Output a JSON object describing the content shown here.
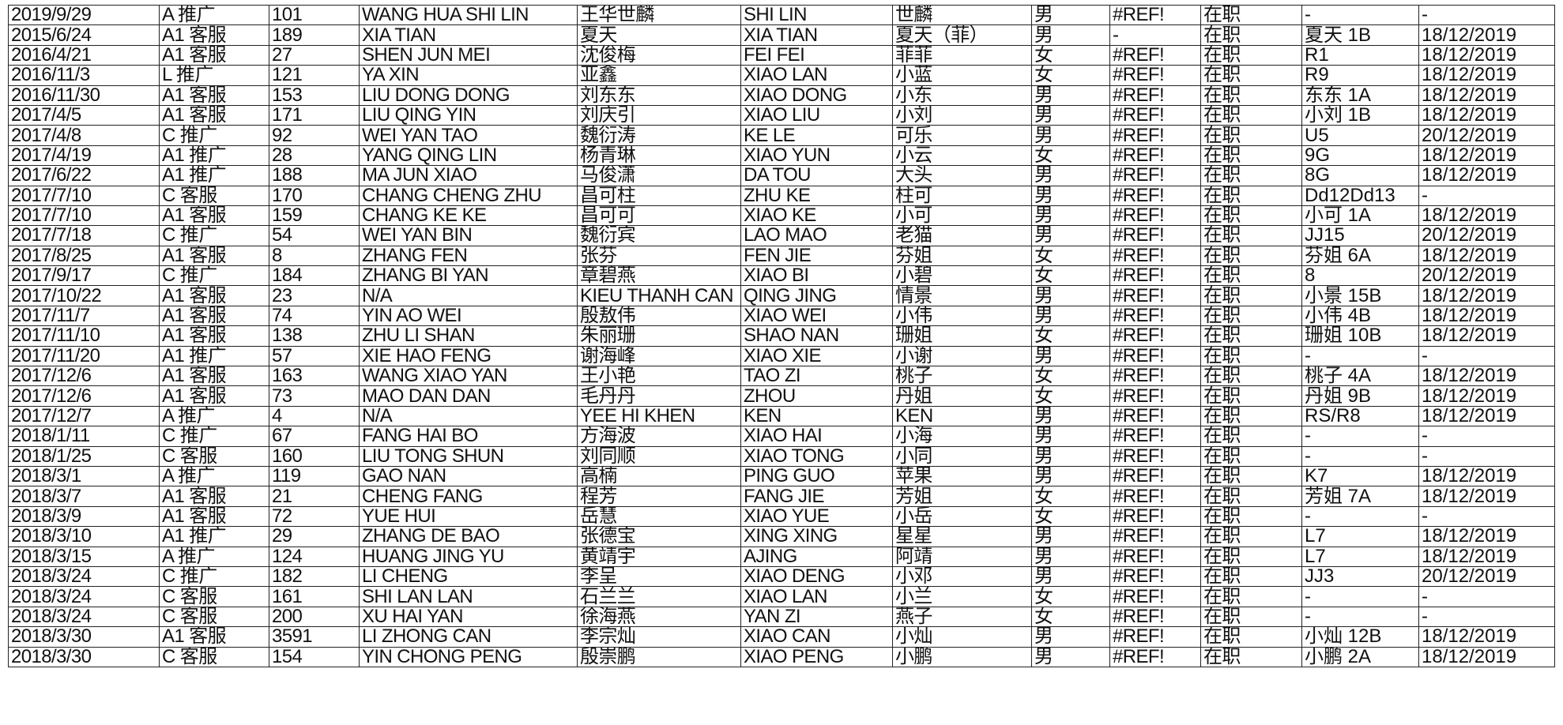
{
  "rows": [
    [
      "2019/9/29",
      "A 推广",
      "101",
      "WANG HUA SHI LIN",
      "王华世麟",
      "SHI LIN",
      "世麟",
      "男",
      "#REF!",
      "在职",
      "-",
      "-"
    ],
    [
      "2015/6/24",
      "A1 客服",
      "189",
      "XIA TIAN",
      "夏天",
      "XIA TIAN",
      "夏天（菲）",
      "男",
      "-",
      "在职",
      "夏天 1B",
      "18/12/2019"
    ],
    [
      "2016/4/21",
      "A1 客服",
      "27",
      "SHEN JUN MEI",
      "沈俊梅",
      "FEI FEI",
      "菲菲",
      "女",
      "#REF!",
      "在职",
      "R1",
      "18/12/2019"
    ],
    [
      "2016/11/3",
      "L 推广",
      "121",
      "YA XIN",
      "亚鑫",
      "XIAO LAN",
      "小蓝",
      "女",
      "#REF!",
      "在职",
      "R9",
      "18/12/2019"
    ],
    [
      "2016/11/30",
      "A1 客服",
      "153",
      "LIU DONG DONG",
      "刘东东",
      "XIAO DONG",
      "小东",
      "男",
      "#REF!",
      "在职",
      "东东 1A",
      "18/12/2019"
    ],
    [
      "2017/4/5",
      "A1 客服",
      "171",
      "LIU QING YIN",
      "刘庆引",
      "XIAO LIU",
      "小刘",
      "男",
      "#REF!",
      "在职",
      "小刘 1B",
      "18/12/2019"
    ],
    [
      "2017/4/8",
      "C 推广",
      "92",
      "WEI YAN TAO",
      "魏衍涛",
      "KE LE",
      "可乐",
      "男",
      "#REF!",
      "在职",
      "U5",
      "20/12/2019"
    ],
    [
      "2017/4/19",
      "A1 推广",
      "28",
      "YANG QING LIN",
      "杨青琳",
      "XIAO YUN",
      "小云",
      "女",
      "#REF!",
      "在职",
      "9G",
      "18/12/2019"
    ],
    [
      "2017/6/22",
      "A1 推广",
      "188",
      "MA JUN XIAO",
      "马俊潇",
      "DA TOU",
      "大头",
      "男",
      "#REF!",
      "在职",
      "8G",
      "18/12/2019"
    ],
    [
      "2017/7/10",
      "C 客服",
      "170",
      "CHANG CHENG ZHU",
      "昌可柱",
      "ZHU KE",
      "柱可",
      "男",
      "#REF!",
      "在职",
      "Dd12Dd13",
      "-"
    ],
    [
      "2017/7/10",
      "A1 客服",
      "159",
      "CHANG KE KE",
      "昌可可",
      "XIAO KE",
      "小可",
      "男",
      "#REF!",
      "在职",
      "小可 1A",
      "18/12/2019"
    ],
    [
      "2017/7/18",
      "C 推广",
      "54",
      "WEI YAN BIN",
      "魏衍宾",
      "LAO MAO",
      "老猫",
      "男",
      "#REF!",
      "在职",
      "JJ15",
      "20/12/2019"
    ],
    [
      "2017/8/25",
      "A1 客服",
      "8",
      "ZHANG FEN",
      "张芬",
      "FEN JIE",
      "芬姐",
      "女",
      "#REF!",
      "在职",
      "芬姐 6A",
      "18/12/2019"
    ],
    [
      "2017/9/17",
      "C 推广",
      "184",
      "ZHANG BI YAN",
      "章碧燕",
      "XIAO BI",
      "小碧",
      "女",
      "#REF!",
      "在职",
      "8",
      "20/12/2019"
    ],
    [
      "2017/10/22",
      "A1 客服",
      "23",
      "N/A",
      "KIEU THANH CAN",
      "QING JING",
      "情景",
      "男",
      "#REF!",
      "在职",
      "小景 15B",
      "18/12/2019"
    ],
    [
      "2017/11/7",
      "A1 客服",
      "74",
      "YIN AO WEI",
      "殷敖伟",
      "XIAO WEI",
      "小伟",
      "男",
      "#REF!",
      "在职",
      "小伟 4B",
      "18/12/2019"
    ],
    [
      "2017/11/10",
      "A1 客服",
      "138",
      "ZHU LI SHAN",
      "朱丽珊",
      "SHAO NAN",
      "珊姐",
      "女",
      "#REF!",
      "在职",
      "珊姐 10B",
      "18/12/2019"
    ],
    [
      "2017/11/20",
      "A1 推广",
      "57",
      "XIE HAO FENG",
      "谢海峰",
      "XIAO XIE",
      "小谢",
      "男",
      "#REF!",
      "在职",
      "-",
      "-"
    ],
    [
      "2017/12/6",
      "A1 客服",
      "163",
      "WANG XIAO YAN",
      "王小艳",
      "TAO ZI",
      "桃子",
      "女",
      "#REF!",
      "在职",
      "桃子 4A",
      "18/12/2019"
    ],
    [
      "2017/12/6",
      "A1 客服",
      "73",
      "MAO DAN DAN",
      "毛丹丹",
      "ZHOU",
      "丹姐",
      "女",
      "#REF!",
      "在职",
      "丹姐 9B",
      "18/12/2019"
    ],
    [
      "2017/12/7",
      "A 推广",
      "4",
      "N/A",
      "YEE HI KHEN",
      "KEN",
      "KEN",
      "男",
      "#REF!",
      "在职",
      "RS/R8",
      "18/12/2019"
    ],
    [
      "2018/1/11",
      "C 推广",
      "67",
      "FANG HAI BO",
      "方海波",
      "XIAO HAI",
      "小海",
      "男",
      "#REF!",
      "在职",
      "-",
      "-"
    ],
    [
      "2018/1/25",
      "C 客服",
      "160",
      "LIU TONG SHUN",
      "刘同顺",
      "XIAO TONG",
      "小同",
      "男",
      "#REF!",
      "在职",
      "-",
      "-"
    ],
    [
      "2018/3/1",
      "A 推广",
      "119",
      "GAO NAN",
      "高楠",
      "PING GUO",
      "苹果",
      "男",
      "#REF!",
      "在职",
      "K7",
      "18/12/2019"
    ],
    [
      "2018/3/7",
      "A1 客服",
      "21",
      "CHENG FANG",
      "程芳",
      "FANG JIE",
      "芳姐",
      "女",
      "#REF!",
      "在职",
      "芳姐 7A",
      "18/12/2019"
    ],
    [
      "2018/3/9",
      "A1 客服",
      "72",
      "YUE HUI",
      "岳慧",
      "XIAO YUE",
      "小岳",
      "女",
      "#REF!",
      "在职",
      "-",
      "-"
    ],
    [
      "2018/3/10",
      "A1 推广",
      "29",
      "ZHANG DE BAO",
      "张德宝",
      "XING XING",
      "星星",
      "男",
      "#REF!",
      "在职",
      "L7",
      "18/12/2019"
    ],
    [
      "2018/3/15",
      "A 推广",
      "124",
      "HUANG JING YU",
      "黄靖宇",
      "AJING",
      "阿靖",
      "男",
      "#REF!",
      "在职",
      "L7",
      "18/12/2019"
    ],
    [
      "2018/3/24",
      "C 推广",
      "182",
      "LI CHENG",
      "李呈",
      "XIAO DENG",
      "小邓",
      "男",
      "#REF!",
      "在职",
      "JJ3",
      "20/12/2019"
    ],
    [
      "2018/3/24",
      "C 客服",
      "161",
      "SHI LAN LAN",
      "石兰兰",
      "XIAO LAN",
      "小兰",
      "女",
      "#REF!",
      "在职",
      "-",
      "-"
    ],
    [
      "2018/3/24",
      "C 客服",
      "200",
      "XU HAI YAN",
      "徐海燕",
      "YAN ZI",
      "燕子",
      "女",
      "#REF!",
      "在职",
      "-",
      "-"
    ],
    [
      "2018/3/30",
      "A1 客服",
      "3591",
      "LI ZHONG CAN",
      "李宗灿",
      "XIAO CAN",
      "小灿",
      "男",
      "#REF!",
      "在职",
      "小灿 12B",
      "18/12/2019"
    ],
    [
      "2018/3/30",
      "C 客服",
      "154",
      "YIN CHONG PENG",
      "殷崇鹏",
      "XIAO PENG",
      "小鹏",
      "男",
      "#REF!",
      "在职",
      "小鹏 2A",
      "18/12/2019"
    ]
  ],
  "colors": {
    "border": "#222222",
    "text": "#111111",
    "background": "#ffffff"
  }
}
